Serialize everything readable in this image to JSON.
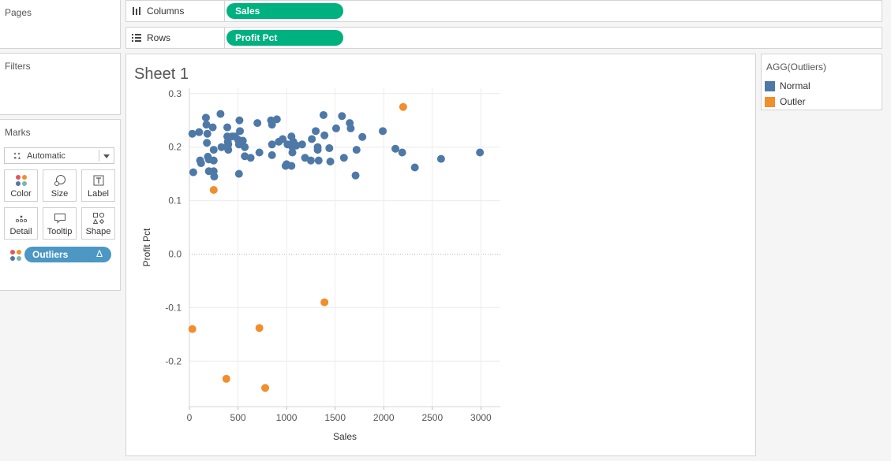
{
  "pages": {
    "title": "Pages"
  },
  "filters": {
    "title": "Filters"
  },
  "marks": {
    "title": "Marks",
    "mark_type": "Automatic",
    "buttons": [
      {
        "label": "Color",
        "icon": "color-icon"
      },
      {
        "label": "Size",
        "icon": "size-icon"
      },
      {
        "label": "Label",
        "icon": "label-icon"
      },
      {
        "label": "Detail",
        "icon": "detail-icon"
      },
      {
        "label": "Tooltip",
        "icon": "tooltip-icon"
      },
      {
        "label": "Shape",
        "icon": "shape-icon"
      }
    ],
    "color_field": "Outliers",
    "color_field_symbol": "Δ"
  },
  "shelves": {
    "columns": {
      "label": "Columns",
      "icon": "columns-icon",
      "pill": "Sales"
    },
    "rows": {
      "label": "Rows",
      "icon": "rows-icon",
      "pill": "Profit Pct"
    }
  },
  "sheet": {
    "title": "Sheet 1"
  },
  "legend": {
    "title": "AGG(Outliers)",
    "items": [
      {
        "label": "Normal",
        "color": "#4e79a7"
      },
      {
        "label": "Outler",
        "color": "#f28e2b"
      }
    ]
  },
  "chart_data": {
    "type": "scatter",
    "xlabel": "Sales",
    "ylabel": "Profit Pct",
    "xlim": [
      0,
      3200
    ],
    "ylim": [
      -0.285,
      0.31
    ],
    "xticks": [
      0,
      500,
      1000,
      1500,
      2000,
      2500,
      3000
    ],
    "yticks": [
      -0.2,
      -0.1,
      0.0,
      0.1,
      0.2,
      0.3
    ],
    "ytick_labels": [
      "-0.2",
      "-0.1",
      "0.0",
      "0.1",
      "0.2",
      "0.3"
    ],
    "zero_line": true,
    "series": [
      {
        "name": "Normal",
        "color": "#4e79a7",
        "points": [
          [
            30,
            0.225
          ],
          [
            40,
            0.153
          ],
          [
            100,
            0.228
          ],
          [
            110,
            0.175
          ],
          [
            120,
            0.17
          ],
          [
            170,
            0.255
          ],
          [
            175,
            0.242
          ],
          [
            180,
            0.208
          ],
          [
            185,
            0.225
          ],
          [
            190,
            0.182
          ],
          [
            200,
            0.177
          ],
          [
            200,
            0.155
          ],
          [
            240,
            0.237
          ],
          [
            250,
            0.195
          ],
          [
            250,
            0.175
          ],
          [
            250,
            0.155
          ],
          [
            255,
            0.145
          ],
          [
            320,
            0.262
          ],
          [
            330,
            0.2
          ],
          [
            390,
            0.237
          ],
          [
            390,
            0.22
          ],
          [
            395,
            0.21
          ],
          [
            400,
            0.205
          ],
          [
            400,
            0.195
          ],
          [
            440,
            0.22
          ],
          [
            470,
            0.22
          ],
          [
            500,
            0.214
          ],
          [
            510,
            0.205
          ],
          [
            510,
            0.15
          ],
          [
            515,
            0.25
          ],
          [
            520,
            0.23
          ],
          [
            550,
            0.212
          ],
          [
            570,
            0.2
          ],
          [
            570,
            0.183
          ],
          [
            630,
            0.18
          ],
          [
            700,
            0.245
          ],
          [
            720,
            0.19
          ],
          [
            840,
            0.25
          ],
          [
            850,
            0.205
          ],
          [
            850,
            0.185
          ],
          [
            850,
            0.242
          ],
          [
            900,
            0.252
          ],
          [
            920,
            0.21
          ],
          [
            960,
            0.215
          ],
          [
            990,
            0.165
          ],
          [
            1000,
            0.168
          ],
          [
            1010,
            0.205
          ],
          [
            1050,
            0.165
          ],
          [
            1050,
            0.22
          ],
          [
            1060,
            0.2
          ],
          [
            1060,
            0.19
          ],
          [
            1070,
            0.21
          ],
          [
            1080,
            0.205
          ],
          [
            1100,
            0.203
          ],
          [
            1160,
            0.205
          ],
          [
            1190,
            0.18
          ],
          [
            1250,
            0.175
          ],
          [
            1260,
            0.215
          ],
          [
            1300,
            0.23
          ],
          [
            1320,
            0.2
          ],
          [
            1320,
            0.195
          ],
          [
            1330,
            0.175
          ],
          [
            1380,
            0.26
          ],
          [
            1390,
            0.222
          ],
          [
            1440,
            0.198
          ],
          [
            1450,
            0.173
          ],
          [
            1510,
            0.235
          ],
          [
            1570,
            0.258
          ],
          [
            1590,
            0.18
          ],
          [
            1650,
            0.245
          ],
          [
            1660,
            0.235
          ],
          [
            1710,
            0.147
          ],
          [
            1720,
            0.195
          ],
          [
            1780,
            0.219
          ],
          [
            1990,
            0.23
          ],
          [
            2120,
            0.197
          ],
          [
            2190,
            0.19
          ],
          [
            2320,
            0.162
          ],
          [
            2590,
            0.178
          ],
          [
            2990,
            0.19
          ]
        ]
      },
      {
        "name": "Outler",
        "color": "#f28e2b",
        "points": [
          [
            2200,
            0.275
          ],
          [
            250,
            0.12
          ],
          [
            1390,
            -0.09
          ],
          [
            30,
            -0.14
          ],
          [
            720,
            -0.138
          ],
          [
            380,
            -0.233
          ],
          [
            780,
            -0.25
          ]
        ]
      }
    ]
  }
}
